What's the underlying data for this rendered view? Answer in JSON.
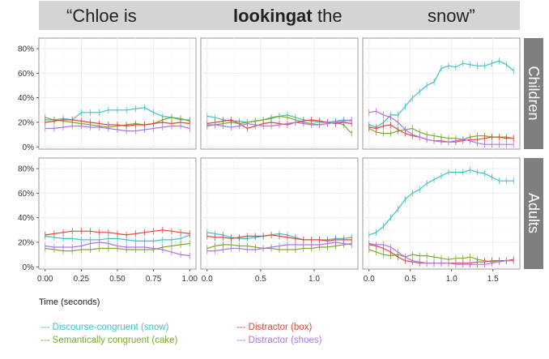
{
  "header": {
    "segments": [
      {
        "text": "“Chloe is",
        "bold": false
      },
      {
        "text": "looking",
        "bold": true
      },
      {
        "text": "at",
        "bold": true
      },
      {
        "text": "the",
        "bold": false
      },
      {
        "text": "snow”",
        "bold": false
      }
    ]
  },
  "strips": [
    "Children",
    "Adults"
  ],
  "x_axis_title": "Time (seconds)",
  "y_ticks": [
    "0%",
    "20%",
    "40%",
    "60%",
    "80%"
  ],
  "x_ticks": [
    [
      "0.00",
      "0.25",
      "0.50",
      "0.75",
      "1.00"
    ],
    [
      "0.0",
      "0.5",
      "1.0"
    ],
    [
      "0.0",
      "0.5",
      "1.0",
      "1.5"
    ]
  ],
  "legend": [
    {
      "text": "--- Discourse-congruent (snow)",
      "color": "#3fc1c9"
    },
    {
      "text": "--- Semantically congruent (cake)",
      "color": "#7aab2a"
    },
    {
      "text": "--- Distractor (box)",
      "color": "#e0483a"
    },
    {
      "text": "--- Distractor (shoes)",
      "color": "#b074e6"
    }
  ],
  "chart_data": {
    "type": "line",
    "ylim": [
      0,
      0.85
    ],
    "panels": [
      {
        "row": "Children",
        "col": 1,
        "xlim": [
          0,
          1.0
        ],
        "x": [
          0.0,
          0.0625,
          0.125,
          0.1875,
          0.25,
          0.3125,
          0.375,
          0.4375,
          0.5,
          0.5625,
          0.625,
          0.6875,
          0.75,
          0.8125,
          0.875,
          0.9375,
          1.0
        ],
        "series": [
          {
            "name": "Discourse-congruent (snow)",
            "color": "#3fc1c9",
            "values": [
              0.22,
              0.22,
              0.23,
              0.22,
              0.28,
              0.28,
              0.28,
              0.3,
              0.3,
              0.3,
              0.31,
              0.32,
              0.28,
              0.25,
              0.24,
              0.22,
              0.22
            ]
          },
          {
            "name": "Semantically congruent (cake)",
            "color": "#7aab2a",
            "values": [
              0.24,
              0.22,
              0.21,
              0.2,
              0.19,
              0.18,
              0.17,
              0.16,
              0.17,
              0.18,
              0.19,
              0.18,
              0.19,
              0.22,
              0.24,
              0.23,
              0.21
            ]
          },
          {
            "name": "Distractor (box)",
            "color": "#e0483a",
            "values": [
              0.2,
              0.21,
              0.22,
              0.22,
              0.21,
              0.2,
              0.19,
              0.18,
              0.18,
              0.17,
              0.18,
              0.18,
              0.19,
              0.2,
              0.19,
              0.2,
              0.19
            ]
          },
          {
            "name": "Distractor (shoes)",
            "color": "#b074e6",
            "values": [
              0.15,
              0.15,
              0.16,
              0.17,
              0.17,
              0.16,
              0.16,
              0.15,
              0.14,
              0.13,
              0.13,
              0.14,
              0.15,
              0.16,
              0.17,
              0.17,
              0.15
            ]
          }
        ]
      },
      {
        "row": "Children",
        "col": 2,
        "xlim": [
          0,
          1.35
        ],
        "x": [
          0.0,
          0.075,
          0.15,
          0.225,
          0.3,
          0.375,
          0.45,
          0.525,
          0.6,
          0.675,
          0.75,
          0.825,
          0.9,
          0.975,
          1.05,
          1.125,
          1.2,
          1.275,
          1.35
        ],
        "series": [
          {
            "name": "Discourse-congruent (snow)",
            "color": "#3fc1c9",
            "values": [
              0.25,
              0.24,
              0.22,
              0.21,
              0.21,
              0.2,
              0.21,
              0.22,
              0.23,
              0.25,
              0.26,
              0.24,
              0.22,
              0.21,
              0.2,
              0.2,
              0.21,
              0.22,
              0.21
            ]
          },
          {
            "name": "Semantically congruent (cake)",
            "color": "#7aab2a",
            "values": [
              0.17,
              0.18,
              0.19,
              0.2,
              0.19,
              0.2,
              0.21,
              0.22,
              0.24,
              0.25,
              0.24,
              0.22,
              0.2,
              0.19,
              0.18,
              0.19,
              0.2,
              0.18,
              0.11
            ]
          },
          {
            "name": "Distractor (box)",
            "color": "#e0483a",
            "values": [
              0.19,
              0.2,
              0.21,
              0.22,
              0.19,
              0.15,
              0.17,
              0.19,
              0.2,
              0.19,
              0.18,
              0.2,
              0.21,
              0.22,
              0.21,
              0.2,
              0.19,
              0.2,
              0.19
            ]
          },
          {
            "name": "Distractor (shoes)",
            "color": "#b074e6",
            "values": [
              0.18,
              0.18,
              0.17,
              0.16,
              0.17,
              0.19,
              0.18,
              0.17,
              0.17,
              0.18,
              0.19,
              0.2,
              0.19,
              0.18,
              0.18,
              0.19,
              0.2,
              0.21,
              0.22
            ]
          }
        ]
      },
      {
        "row": "Children",
        "col": 3,
        "xlim": [
          0,
          1.75
        ],
        "x": [
          0.0,
          0.0875,
          0.175,
          0.2625,
          0.35,
          0.4375,
          0.525,
          0.6125,
          0.7,
          0.7875,
          0.875,
          0.9625,
          1.05,
          1.1375,
          1.225,
          1.3125,
          1.4,
          1.4875,
          1.575,
          1.6625,
          1.75
        ],
        "series": [
          {
            "name": "Discourse-congruent (snow)",
            "color": "#3fc1c9",
            "values": [
              0.18,
              0.16,
              0.2,
              0.26,
              0.26,
              0.33,
              0.4,
              0.45,
              0.5,
              0.53,
              0.64,
              0.66,
              0.65,
              0.68,
              0.67,
              0.66,
              0.66,
              0.68,
              0.7,
              0.67,
              0.62
            ]
          },
          {
            "name": "Semantically congruent (cake)",
            "color": "#7aab2a",
            "values": [
              0.15,
              0.12,
              0.11,
              0.11,
              0.13,
              0.14,
              0.15,
              0.12,
              0.1,
              0.09,
              0.08,
              0.07,
              0.07,
              0.06,
              0.08,
              0.09,
              0.09,
              0.08,
              0.08,
              0.08,
              0.07
            ]
          },
          {
            "name": "Distractor (box)",
            "color": "#e0483a",
            "values": [
              0.16,
              0.15,
              0.17,
              0.18,
              0.14,
              0.11,
              0.09,
              0.08,
              0.06,
              0.05,
              0.05,
              0.04,
              0.04,
              0.05,
              0.06,
              0.06,
              0.07,
              0.08,
              0.08,
              0.07,
              0.07
            ]
          },
          {
            "name": "Distractor (shoes)",
            "color": "#b074e6",
            "values": [
              0.28,
              0.29,
              0.26,
              0.24,
              0.2,
              0.14,
              0.1,
              0.08,
              0.06,
              0.05,
              0.04,
              0.04,
              0.05,
              0.06,
              0.05,
              0.03,
              0.02,
              0.02,
              0.02,
              0.02,
              0.02
            ]
          }
        ]
      },
      {
        "row": "Adults",
        "col": 1,
        "xlim": [
          0,
          1.0
        ],
        "x": [
          0.0,
          0.0625,
          0.125,
          0.1875,
          0.25,
          0.3125,
          0.375,
          0.4375,
          0.5,
          0.5625,
          0.625,
          0.6875,
          0.75,
          0.8125,
          0.875,
          0.9375,
          1.0
        ],
        "series": [
          {
            "name": "Discourse-congruent (snow)",
            "color": "#3fc1c9",
            "values": [
              0.25,
              0.24,
              0.23,
              0.23,
              0.22,
              0.22,
              0.22,
              0.23,
              0.23,
              0.22,
              0.21,
              0.21,
              0.21,
              0.22,
              0.22,
              0.23,
              0.26
            ]
          },
          {
            "name": "Semantically congruent (cake)",
            "color": "#7aab2a",
            "values": [
              0.15,
              0.14,
              0.13,
              0.13,
              0.14,
              0.14,
              0.15,
              0.15,
              0.15,
              0.14,
              0.14,
              0.14,
              0.14,
              0.16,
              0.17,
              0.18,
              0.19
            ]
          },
          {
            "name": "Distractor (box)",
            "color": "#e0483a",
            "values": [
              0.26,
              0.27,
              0.28,
              0.29,
              0.29,
              0.29,
              0.28,
              0.28,
              0.27,
              0.26,
              0.27,
              0.28,
              0.29,
              0.3,
              0.29,
              0.28,
              0.27
            ]
          },
          {
            "name": "Distractor (shoes)",
            "color": "#b074e6",
            "values": [
              0.17,
              0.16,
              0.16,
              0.16,
              0.17,
              0.19,
              0.2,
              0.19,
              0.17,
              0.16,
              0.16,
              0.16,
              0.15,
              0.14,
              0.12,
              0.1,
              0.09
            ]
          }
        ]
      },
      {
        "row": "Adults",
        "col": 2,
        "xlim": [
          0,
          1.35
        ],
        "x": [
          0.0,
          0.075,
          0.15,
          0.225,
          0.3,
          0.375,
          0.45,
          0.525,
          0.6,
          0.675,
          0.75,
          0.825,
          0.9,
          0.975,
          1.05,
          1.125,
          1.2,
          1.275,
          1.35
        ],
        "series": [
          {
            "name": "Discourse-congruent (snow)",
            "color": "#3fc1c9",
            "values": [
              0.28,
              0.27,
              0.26,
              0.24,
              0.23,
              0.23,
              0.24,
              0.25,
              0.26,
              0.27,
              0.26,
              0.24,
              0.22,
              0.22,
              0.22,
              0.22,
              0.23,
              0.23,
              0.24
            ]
          },
          {
            "name": "Semantically congruent (cake)",
            "color": "#7aab2a",
            "values": [
              0.15,
              0.17,
              0.18,
              0.18,
              0.17,
              0.17,
              0.16,
              0.15,
              0.15,
              0.14,
              0.14,
              0.14,
              0.15,
              0.15,
              0.16,
              0.16,
              0.17,
              0.18,
              0.19
            ]
          },
          {
            "name": "Distractor (box)",
            "color": "#e0483a",
            "values": [
              0.25,
              0.24,
              0.24,
              0.23,
              0.24,
              0.25,
              0.25,
              0.25,
              0.26,
              0.25,
              0.24,
              0.23,
              0.22,
              0.22,
              0.22,
              0.21,
              0.22,
              0.22,
              0.22
            ]
          },
          {
            "name": "Distractor (shoes)",
            "color": "#b074e6",
            "values": [
              0.13,
              0.13,
              0.14,
              0.15,
              0.15,
              0.14,
              0.14,
              0.15,
              0.16,
              0.17,
              0.18,
              0.18,
              0.18,
              0.18,
              0.18,
              0.19,
              0.2,
              0.19,
              0.18
            ]
          }
        ]
      },
      {
        "row": "Adults",
        "col": 3,
        "xlim": [
          0,
          1.75
        ],
        "x": [
          0.0,
          0.0875,
          0.175,
          0.2625,
          0.35,
          0.4375,
          0.525,
          0.6125,
          0.7,
          0.7875,
          0.875,
          0.9625,
          1.05,
          1.1375,
          1.225,
          1.3125,
          1.4,
          1.4875,
          1.575,
          1.6625,
          1.75
        ],
        "series": [
          {
            "name": "Discourse-congruent (snow)",
            "color": "#3fc1c9",
            "values": [
              0.26,
              0.28,
              0.33,
              0.4,
              0.47,
              0.55,
              0.6,
              0.63,
              0.68,
              0.71,
              0.74,
              0.77,
              0.77,
              0.77,
              0.79,
              0.77,
              0.76,
              0.73,
              0.7,
              0.7,
              0.7
            ]
          },
          {
            "name": "Semantically congruent (cake)",
            "color": "#7aab2a",
            "values": [
              0.14,
              0.12,
              0.1,
              0.09,
              0.1,
              0.08,
              0.1,
              0.09,
              0.09,
              0.08,
              0.07,
              0.06,
              0.07,
              0.07,
              0.08,
              0.06,
              0.05,
              0.04,
              0.05,
              0.05,
              0.05
            ]
          },
          {
            "name": "Distractor (box)",
            "color": "#e0483a",
            "values": [
              0.18,
              0.17,
              0.15,
              0.12,
              0.08,
              0.05,
              0.04,
              0.03,
              0.03,
              0.03,
              0.03,
              0.03,
              0.03,
              0.03,
              0.03,
              0.04,
              0.04,
              0.05,
              0.05,
              0.05,
              0.06
            ]
          },
          {
            "name": "Distractor (shoes)",
            "color": "#b074e6",
            "values": [
              0.19,
              0.18,
              0.18,
              0.16,
              0.12,
              0.08,
              0.05,
              0.04,
              0.03,
              0.03,
              0.03,
              0.03,
              0.02,
              0.02,
              0.02,
              0.02,
              0.02,
              0.03,
              0.04,
              0.05,
              0.05
            ]
          }
        ]
      }
    ]
  }
}
